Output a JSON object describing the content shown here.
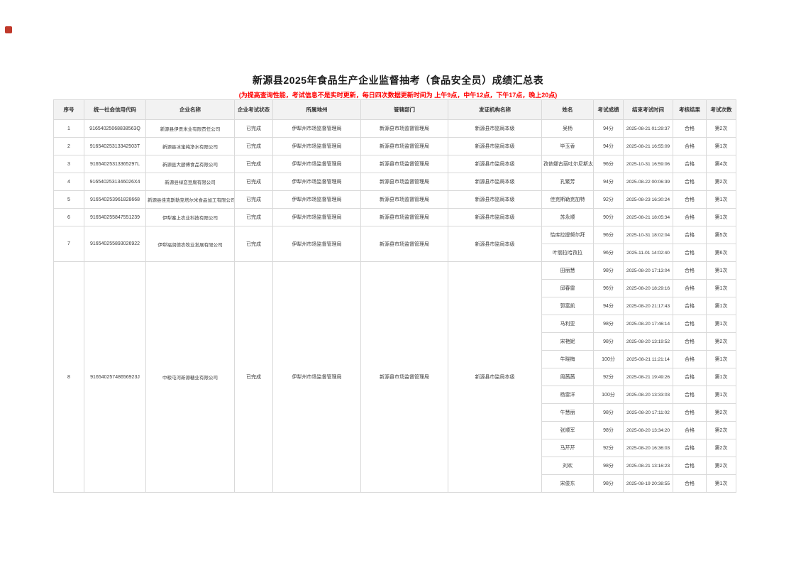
{
  "page": {
    "title": "新源县2025年食品生产企业监督抽考（食品安全员）成绩汇总表",
    "subtitle": "(为提高查询性能，考试信息不是实时更新，每日四次数据更新时间为 上午9点，中午12点，下午17点，晚上20点)"
  },
  "table": {
    "headers": [
      "序号",
      "统一社会信用代码",
      "企业名称",
      "企业考试状态",
      "所属地州",
      "管辖部门",
      "发证机构名称",
      "姓名",
      "考试成绩",
      "结束考试时间",
      "考核结果",
      "考试次数"
    ],
    "rows": [
      {
        "seq": "1",
        "credit_code": "91654025068838563Q",
        "company": "新源县伊贡米业有限责任公司",
        "exam_status": "已完成",
        "prefecture": "伊犁州市场监督管理局",
        "department": "新源县市场监督管理局",
        "issuer": "新源县市监局本级",
        "people": [
          {
            "name": "吴杨",
            "score": "94分",
            "end_time": "2025-08-21 01:29:37",
            "result": "合格",
            "attempt": "第2次"
          }
        ]
      },
      {
        "seq": "2",
        "credit_code": "91654025313342503T",
        "company": "新源县冰宝纯净水有限公司",
        "exam_status": "已完成",
        "prefecture": "伊犁州市场监督管理局",
        "department": "新源县市场监督管理局",
        "issuer": "新源县市监局本级",
        "people": [
          {
            "name": "毕玉香",
            "score": "94分",
            "end_time": "2025-08-21 16:55:09",
            "result": "合格",
            "attempt": "第1次"
          }
        ]
      },
      {
        "seq": "3",
        "credit_code": "91654025313365297L",
        "company": "新源县大厨傅食品有限公司",
        "exam_status": "已完成",
        "prefecture": "伊犁州市场监督管理局",
        "department": "新源县市场监督管理局",
        "issuer": "新源县市监局本级",
        "people": [
          {
            "name": "孜依娜古丽吐尔尼斯太",
            "score": "96分",
            "end_time": "2025-10-31 16:59:06",
            "result": "合格",
            "attempt": "第4次"
          }
        ]
      },
      {
        "seq": "4",
        "credit_code": "9165402531346026X4",
        "company": "新源县绿恋豆腐有限公司",
        "exam_status": "已完成",
        "prefecture": "伊犁州市场监督管理局",
        "department": "新源县市场监督管理局",
        "issuer": "新源县市监局本级",
        "people": [
          {
            "name": "孔繁芳",
            "score": "94分",
            "end_time": "2025-08-22 00:06:39",
            "result": "合格",
            "attempt": "第2次"
          }
        ]
      },
      {
        "seq": "5",
        "credit_code": "916540253961828668",
        "company": "新源县佳克斯勒克塔尔米食品加工有限公司",
        "exam_status": "已完成",
        "prefecture": "伊犁州市场监督管理局",
        "department": "新源县市场监督管理局",
        "issuer": "新源县市监局本级",
        "people": [
          {
            "name": "佳克斯勒克加特",
            "score": "92分",
            "end_time": "2025-08-23 16:30:24",
            "result": "合格",
            "attempt": "第1次"
          }
        ]
      },
      {
        "seq": "6",
        "credit_code": "916540255847551239",
        "company": "伊犁塞上农业科技有限公司",
        "exam_status": "已完成",
        "prefecture": "伊犁州市场监督管理局",
        "department": "新源县市场监督管理局",
        "issuer": "新源县市监局本级",
        "people": [
          {
            "name": "苏永顺",
            "score": "90分",
            "end_time": "2025-08-21 18:05:34",
            "result": "合格",
            "attempt": "第1次"
          }
        ]
      },
      {
        "seq": "7",
        "credit_code": "916540255893026922",
        "company": "伊犁福润德农牧业发展有限公司",
        "exam_status": "已完成",
        "prefecture": "伊犁州市场监督管理局",
        "department": "新源县市场监督管理局",
        "issuer": "新源县市监局本级",
        "people": [
          {
            "name": "恰库拉提努尔拜",
            "score": "96分",
            "end_time": "2025-10-31 18:02:04",
            "result": "合格",
            "attempt": "第5次"
          },
          {
            "name": "叶丽拉哈孜拉",
            "score": "96分",
            "end_time": "2025-11-01 14:02:40",
            "result": "合格",
            "attempt": "第6次"
          }
        ]
      },
      {
        "seq": "8",
        "credit_code": "91654025748656923J",
        "company": "中粮屯河新源糖业有限公司",
        "exam_status": "已完成",
        "prefecture": "伊犁州市场监督管理局",
        "department": "新源县市场监督管理局",
        "issuer": "新源县市监局本级",
        "people": [
          {
            "name": "田丽慧",
            "score": "98分",
            "end_time": "2025-08-20 17:13:04",
            "result": "合格",
            "attempt": "第1次"
          },
          {
            "name": "邱春雷",
            "score": "96分",
            "end_time": "2025-08-20 18:29:16",
            "result": "合格",
            "attempt": "第1次"
          },
          {
            "name": "郭富凯",
            "score": "94分",
            "end_time": "2025-08-20 21:17:43",
            "result": "合格",
            "attempt": "第1次"
          },
          {
            "name": "马利亚",
            "score": "98分",
            "end_time": "2025-08-20 17:46:14",
            "result": "合格",
            "attempt": "第1次"
          },
          {
            "name": "宋艳妮",
            "score": "98分",
            "end_time": "2025-08-20 13:19:52",
            "result": "合格",
            "attempt": "第2次"
          },
          {
            "name": "牛晓梅",
            "score": "100分",
            "end_time": "2025-08-21 11:21:14",
            "result": "合格",
            "attempt": "第1次"
          },
          {
            "name": "周茜茜",
            "score": "92分",
            "end_time": "2025-08-21 19:49:26",
            "result": "合格",
            "attempt": "第1次"
          },
          {
            "name": "杨雷洋",
            "score": "100分",
            "end_time": "2025-08-20 13:33:03",
            "result": "合格",
            "attempt": "第1次"
          },
          {
            "name": "牛慧丽",
            "score": "98分",
            "end_time": "2025-08-20 17:11:02",
            "result": "合格",
            "attempt": "第2次"
          },
          {
            "name": "张顺军",
            "score": "98分",
            "end_time": "2025-08-20 13:34:20",
            "result": "合格",
            "attempt": "第2次"
          },
          {
            "name": "马芹芹",
            "score": "92分",
            "end_time": "2025-08-20 16:36:03",
            "result": "合格",
            "attempt": "第2次"
          },
          {
            "name": "刘欢",
            "score": "98分",
            "end_time": "2025-08-21 13:16:23",
            "result": "合格",
            "attempt": "第2次"
          },
          {
            "name": "宋俊东",
            "score": "98分",
            "end_time": "2025-08-19 20:38:55",
            "result": "合格",
            "attempt": "第1次"
          }
        ]
      }
    ]
  },
  "colors": {
    "subtitle_red": "#ff0000",
    "header_bg": "#f2f2f2",
    "border": "#d9d9d9"
  }
}
